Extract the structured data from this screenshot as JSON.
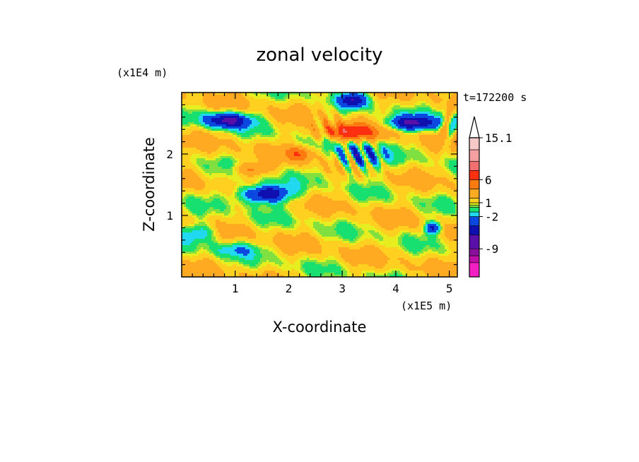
{
  "chart_data": {
    "type": "heatmap",
    "title": "zonal velocity",
    "xlabel": "X-coordinate",
    "ylabel": "Z-coordinate",
    "x_unit": "(x1E5 m)",
    "y_unit": "(x1E4 m)",
    "time_label": "t=172200 s",
    "xlim": [
      0,
      5.15
    ],
    "ylim": [
      0,
      3.0
    ],
    "x_ticks": [
      "1",
      "2",
      "3",
      "4",
      "5"
    ],
    "x_tick_values": [
      1,
      2,
      3,
      4,
      5
    ],
    "y_ticks": [
      "1",
      "2"
    ],
    "y_tick_values": [
      1,
      2
    ],
    "colorbar": {
      "min": -15.1,
      "max": 15.1,
      "extend": "max",
      "tick_labels": [
        "15.1",
        "6",
        "1",
        "-2",
        "-9"
      ],
      "tick_values": [
        15.1,
        6,
        1,
        -2,
        -9
      ],
      "bands": [
        {
          "lo": -15.1,
          "hi": -12,
          "color": "#f21fc3"
        },
        {
          "lo": -12,
          "hi": -10.5,
          "color": "#c00fa8"
        },
        {
          "lo": -10.5,
          "hi": -9,
          "color": "#8a0f9c"
        },
        {
          "lo": -9,
          "hi": -6,
          "color": "#5a0fa8"
        },
        {
          "lo": -6,
          "hi": -4,
          "color": "#1010b0"
        },
        {
          "lo": -4,
          "hi": -2,
          "color": "#0a48e0"
        },
        {
          "lo": -2,
          "hi": -1,
          "color": "#20d8f0"
        },
        {
          "lo": -1,
          "hi": 0,
          "color": "#18e070"
        },
        {
          "lo": 0,
          "hi": 0.5,
          "color": "#7fe040"
        },
        {
          "lo": 0.5,
          "hi": 1,
          "color": "#e6ee20"
        },
        {
          "lo": 1,
          "hi": 2,
          "color": "#ffd020"
        },
        {
          "lo": 2,
          "hi": 4,
          "color": "#ffaa20"
        },
        {
          "lo": 4,
          "hi": 6,
          "color": "#ff7a10"
        },
        {
          "lo": 6,
          "hi": 8,
          "color": "#ff3010"
        },
        {
          "lo": 8,
          "hi": 10,
          "color": "#f07070"
        },
        {
          "lo": 10,
          "hi": 12.5,
          "color": "#f4a0a0"
        },
        {
          "lo": 12.5,
          "hi": 15.1,
          "color": "#f7c8c8"
        }
      ]
    },
    "field_features": [
      {
        "x": 0.85,
        "z": 2.55,
        "value": -6
      },
      {
        "x": 1.5,
        "z": 1.35,
        "value": -6
      },
      {
        "x": 3.1,
        "z": 2.35,
        "value": 6
      },
      {
        "x": 4.3,
        "z": 2.5,
        "value": -6
      },
      {
        "x": 3.2,
        "z": 2.85,
        "value": -5
      },
      {
        "x": 4.7,
        "z": 0.8,
        "value": -5
      },
      {
        "x": 0.3,
        "z": 0.7,
        "value": -2
      },
      {
        "x": 3.4,
        "z": 1.85,
        "value": -5
      }
    ]
  }
}
